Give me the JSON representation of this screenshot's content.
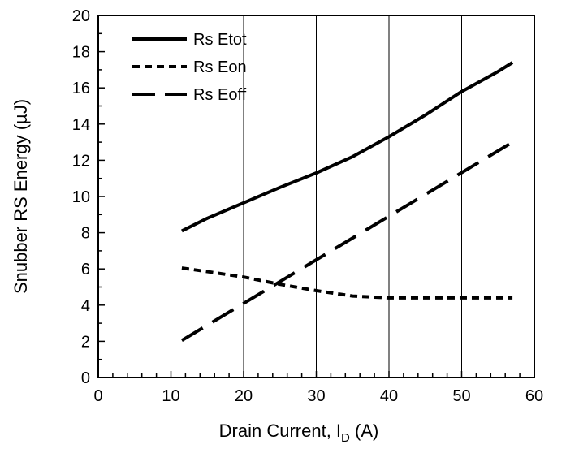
{
  "chart_data": {
    "type": "line",
    "title": "",
    "xlabel": "Drain Current, I",
    "xlabel_subscript": "D",
    "xlabel_suffix": " (A)",
    "ylabel": "Snubber RS Energy (µJ)",
    "xlim": [
      0,
      60
    ],
    "ylim": [
      0,
      20
    ],
    "x_ticks": [
      0,
      10,
      20,
      30,
      40,
      50,
      60
    ],
    "y_ticks": [
      0,
      2,
      4,
      6,
      8,
      10,
      12,
      14,
      16,
      18,
      20
    ],
    "x_tick_labels": [
      "0",
      "10",
      "20",
      "30",
      "40",
      "50",
      "60"
    ],
    "y_tick_labels": [
      "0",
      "2",
      "4",
      "6",
      "8",
      "10",
      "12",
      "14",
      "16",
      "18",
      "20"
    ],
    "grid": "vertical",
    "legend_position": "top-left",
    "series": [
      {
        "name": "Rs Etot",
        "style": "solid",
        "x": [
          11.5,
          15,
          20,
          25,
          30,
          35,
          40,
          45,
          50,
          55,
          57
        ],
        "y": [
          8.1,
          8.8,
          9.65,
          10.5,
          11.3,
          12.2,
          13.3,
          14.5,
          15.8,
          16.9,
          17.4
        ]
      },
      {
        "name": "Rs Eon",
        "style": "short-dash",
        "x": [
          11.5,
          15,
          20,
          25,
          30,
          35,
          40,
          45,
          50,
          55,
          57
        ],
        "y": [
          6.05,
          5.85,
          5.55,
          5.15,
          4.8,
          4.5,
          4.4,
          4.4,
          4.4,
          4.4,
          4.4
        ]
      },
      {
        "name": "Rs Eoff",
        "style": "long-dash",
        "x": [
          11.5,
          57
        ],
        "y": [
          2.05,
          13.0
        ]
      }
    ]
  }
}
